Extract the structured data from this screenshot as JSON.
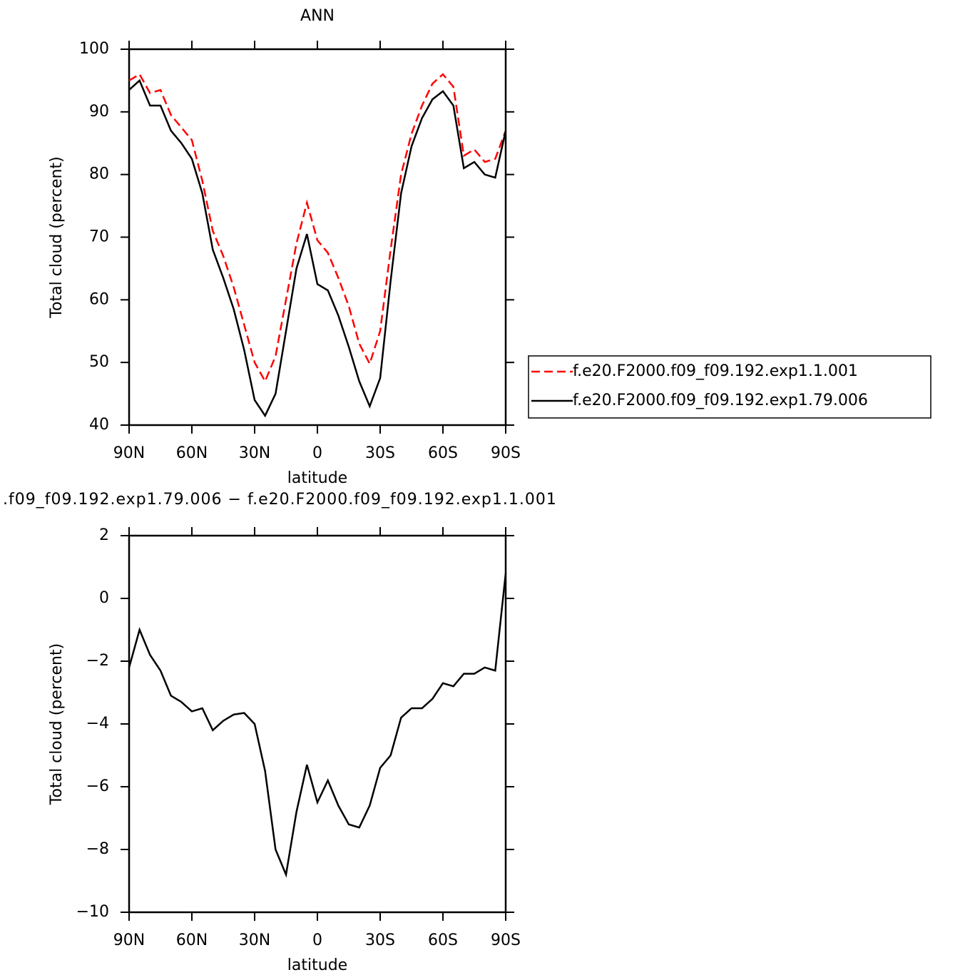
{
  "chart_data": [
    {
      "type": "line",
      "title": "ANN",
      "xlabel": "latitude",
      "ylabel": "Total cloud (percent)",
      "x": [
        90,
        85,
        80,
        75,
        70,
        65,
        60,
        55,
        50,
        45,
        40,
        35,
        30,
        25,
        20,
        15,
        10,
        5,
        0,
        -5,
        -10,
        -15,
        -20,
        -25,
        -30,
        -35,
        -40,
        -45,
        -50,
        -55,
        -60,
        -65,
        -70,
        -75,
        -80,
        -85,
        -90
      ],
      "series": [
        {
          "name": "f.e20.F2000.f09_f09.192.exp1.1.001",
          "color": "#ff0000",
          "line_style": "dashed",
          "values": [
            95,
            96,
            93,
            93.5,
            89.5,
            87.5,
            85.5,
            79,
            71,
            67,
            62,
            56,
            50,
            47,
            51,
            60,
            69,
            75.5,
            69.5,
            67.5,
            63.5,
            59,
            53,
            49.8,
            55,
            68,
            80,
            86.5,
            91,
            94.5,
            96,
            94,
            83,
            84,
            82,
            82.5,
            87
          ]
        },
        {
          "name": "f.e20.F2000.f09_f09.192.exp1.79.006",
          "color": "#000000",
          "line_style": "solid",
          "values": [
            93.5,
            95,
            91,
            91,
            87,
            85,
            82.5,
            77,
            68,
            63.5,
            58.5,
            52,
            44,
            41.5,
            45,
            55,
            65,
            70.5,
            62.5,
            61.5,
            57.5,
            52.5,
            47,
            43,
            47.5,
            63,
            77,
            84.5,
            89,
            92,
            93.3,
            91,
            81,
            82,
            80,
            79.5,
            87
          ]
        }
      ],
      "xlim": [
        90,
        -90
      ],
      "xticks": [
        {
          "value": 90,
          "label": "90N"
        },
        {
          "value": 60,
          "label": "60N"
        },
        {
          "value": 30,
          "label": "30N"
        },
        0,
        {
          "value": -30,
          "label": "30S"
        },
        {
          "value": -60,
          "label": "60S"
        },
        {
          "value": -90,
          "label": "90S"
        }
      ],
      "ylim": [
        40,
        100
      ],
      "yticks": [
        40,
        50,
        60,
        70,
        80,
        90,
        100
      ],
      "legend": "right"
    },
    {
      "type": "line",
      "title": ".f09_f09.192.exp1.79.006 − f.e20.F2000.f09_f09.192.exp1.1.001",
      "xlabel": "latitude",
      "ylabel": "Total cloud (percent)",
      "x": [
        90,
        85,
        80,
        75,
        70,
        65,
        60,
        55,
        50,
        45,
        40,
        35,
        30,
        25,
        20,
        15,
        10,
        5,
        0,
        -5,
        -10,
        -15,
        -20,
        -25,
        -30,
        -35,
        -40,
        -45,
        -50,
        -55,
        -60,
        -65,
        -70,
        -75,
        -80,
        -85,
        -90
      ],
      "color": "#000000",
      "values": [
        -2.2,
        -1.0,
        -1.8,
        -2.3,
        -3.1,
        -3.3,
        -3.6,
        -3.5,
        -4.2,
        -3.9,
        -3.7,
        -3.65,
        -4.0,
        -5.5,
        -8.0,
        -8.8,
        -6.8,
        -5.3,
        -6.5,
        -5.8,
        -6.6,
        -7.2,
        -7.3,
        -6.6,
        -5.4,
        -5.0,
        -3.8,
        -3.5,
        -3.5,
        -3.2,
        -2.7,
        -2.8,
        -2.4,
        -2.4,
        -2.2,
        -2.3,
        0.8
      ],
      "xlim": [
        90,
        -90
      ],
      "xticks": [
        {
          "value": 90,
          "label": "90N"
        },
        {
          "value": 60,
          "label": "60N"
        },
        {
          "value": 30,
          "label": "30N"
        },
        0,
        {
          "value": -30,
          "label": "30S"
        },
        {
          "value": -60,
          "label": "60S"
        },
        {
          "value": -90,
          "label": "90S"
        }
      ],
      "ylim": [
        -10,
        2
      ],
      "yticks": [
        {
          "value": -10,
          "label": "−10"
        },
        {
          "value": -8,
          "label": "−8"
        },
        {
          "value": -6,
          "label": "−6"
        },
        {
          "value": -4,
          "label": "−4"
        },
        {
          "value": -2,
          "label": "−2"
        },
        0,
        2
      ]
    }
  ]
}
